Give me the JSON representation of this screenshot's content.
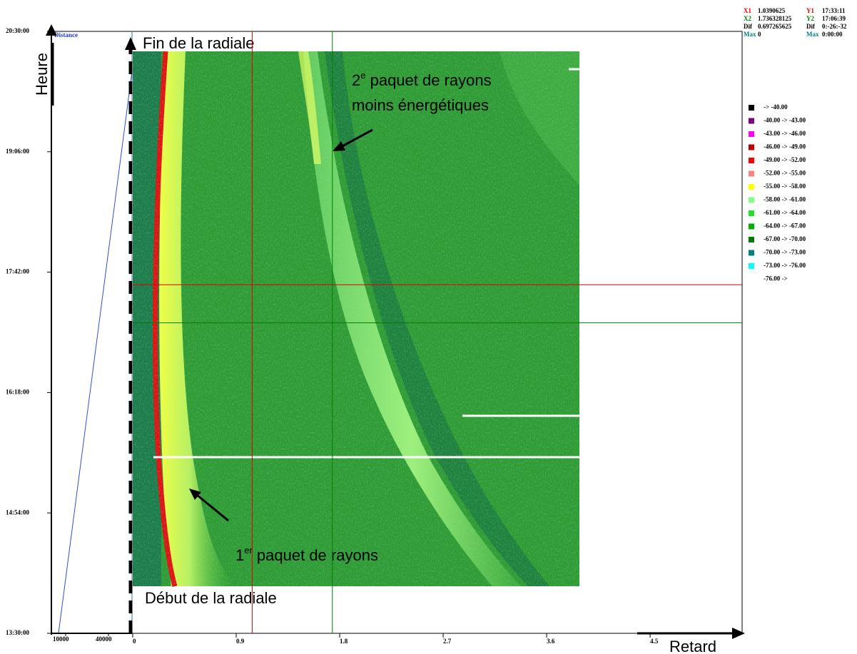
{
  "chart_data": {
    "type": "heatmap",
    "x_label": "Retard",
    "y_label": "Heure",
    "xlim": [
      0,
      5.3
    ],
    "xticks": [
      0,
      0.9,
      1.8,
      2.7,
      3.6,
      4.5
    ],
    "ylim": [
      13.5,
      20.5
    ],
    "yticks": [
      {
        "value": 13.5,
        "label": "13:30:00"
      },
      {
        "value": 14.9,
        "label": "14:54:00"
      },
      {
        "value": 16.3,
        "label": "16:18:00"
      },
      {
        "value": 17.7,
        "label": "17:42:00"
      },
      {
        "value": 19.1,
        "label": "19:06:00"
      },
      {
        "value": 20.5,
        "label": "20:30:00"
      }
    ],
    "distance_axis": {
      "label": "Distance",
      "ticks": [
        10000,
        40000
      ]
    },
    "cursors": [
      {
        "name_x": "X1",
        "x": 1.0390625,
        "name_y": "Y1",
        "y": {
          "value": 17.5531,
          "label": "17:33:11"
        },
        "color": "#e00000"
      },
      {
        "name_x": "X2",
        "x": 1.736328125,
        "name_y": "Y2",
        "y": {
          "value": 17.1108,
          "label": "17:06:39"
        },
        "color": "#008000"
      }
    ],
    "dif": {
      "name": "Dif",
      "x": 0.697265625,
      "y": "0:-26:-32"
    },
    "max": {
      "name": "Max",
      "x": 0,
      "y": "0:00:00"
    },
    "legend": [
      {
        "color": "#000000",
        "label": "-> -40.00"
      },
      {
        "color": "#800080",
        "label": "-40.00 -> -43.00"
      },
      {
        "color": "#ff00ff",
        "label": "-43.00 -> -46.00"
      },
      {
        "color": "#c00000",
        "label": "-46.00 -> -49.00"
      },
      {
        "color": "#ff0000",
        "label": "-49.00 -> -52.00"
      },
      {
        "color": "#ff8080",
        "label": "-52.00 -> -55.00"
      },
      {
        "color": "#ffff00",
        "label": "-55.00 -> -58.00"
      },
      {
        "color": "#80ff80",
        "label": "-58.00 -> -61.00"
      },
      {
        "color": "#20e020",
        "label": "-61.00 -> -64.00"
      },
      {
        "color": "#00b000",
        "label": "-64.00 -> -67.00"
      },
      {
        "color": "#007a00",
        "label": "-67.00 -> -70.00"
      },
      {
        "color": "#008080",
        "label": "-70.00 -> -73.00"
      },
      {
        "color": "#00ffff",
        "label": "-73.00 -> -76.00"
      },
      {
        "color": "#ffffff",
        "label": "-76.00 ->"
      }
    ],
    "annotations": {
      "end": "Fin de la radiale",
      "start": "Début de la radiale",
      "second_num": "2",
      "second_sup": "e",
      "second_line1": " paquet de rayons",
      "second_line2": "moins énergétiques",
      "first_num": "1",
      "first_sup": "er",
      "first_line": " paquet de rayons"
    }
  }
}
